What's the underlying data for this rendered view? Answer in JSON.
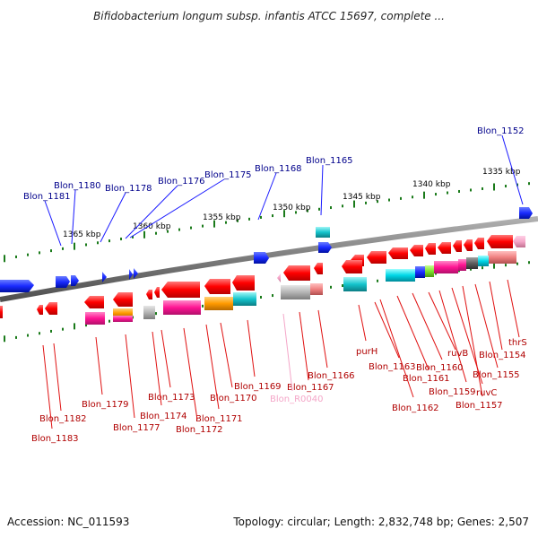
{
  "title": "Bifidobacterium longum subsp. infantis ATCC 15697, complete ...",
  "footer": {
    "accession": "Accession: NC_011593",
    "summary": "Topology: circular; Length: 2,832,748 bp; Genes: 2,507"
  },
  "scale_labels": [
    "1335 kbp",
    "1340 kbp",
    "1345 kbp",
    "1350 kbp",
    "1355 kbp",
    "1360 kbp",
    "1365 kbp"
  ],
  "top_gene_labels": [
    "Blon_1152",
    "Blon_1165",
    "Blon_1168",
    "Blon_1175",
    "Blon_1176",
    "Blon_1178",
    "Blon_1180",
    "Blon_1181"
  ],
  "bottom_gene_labels": [
    "thrS",
    "Blon_1154",
    "Blon_1155",
    "Blon_1157",
    "ruvC",
    "Blon_1159",
    "ruvB",
    "Blon_1160",
    "Blon_1161",
    "Blon_1162",
    "Blon_1163",
    "purH",
    "Blon_1166",
    "Blon_1167",
    "Blon_R0040",
    "Blon_1169",
    "Blon_1170",
    "Blon_1171",
    "Blon_1172",
    "Blon_1173",
    "Blon_1174",
    "Blon_1177",
    "Blon_1179",
    "Blon_1182",
    "Blon_1183"
  ],
  "colors": {
    "backbone": "#7a7a7a",
    "forward_gene": "#1a3cff",
    "reverse_gene": "#ff1a1a",
    "rna": "#f4a6c8",
    "top_label": "#00008b",
    "bottom_label": "#b00000",
    "tick": "#1a7a1a"
  }
}
